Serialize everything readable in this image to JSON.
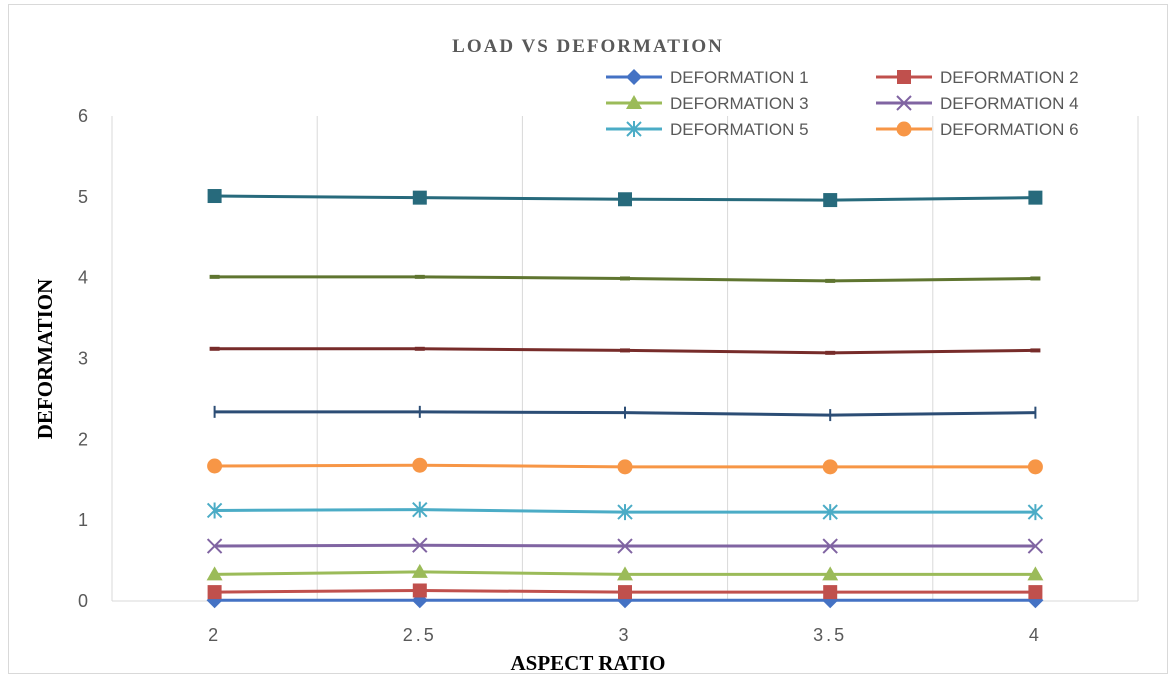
{
  "chart_data": {
    "type": "line",
    "title": "LOAD VS DEFORMATION",
    "xlabel": "ASPECT RATIO",
    "ylabel": "DEFORMATION",
    "x": [
      "2",
      "2.5",
      "3",
      "3.5",
      "4"
    ],
    "ylim": [
      0,
      6
    ],
    "yticks": [
      "0",
      "1",
      "2",
      "3",
      "4",
      "5",
      "6"
    ],
    "grid": "vertical",
    "legend_position": "top-right",
    "series": [
      {
        "name": "DEFORMATION 1",
        "values": [
          0.01,
          0.01,
          0.01,
          0.01,
          0.01
        ],
        "color": "#4472C4",
        "marker": "diamond"
      },
      {
        "name": "DEFORMATION 2",
        "values": [
          0.11,
          0.13,
          0.11,
          0.11,
          0.11
        ],
        "color": "#C0504D",
        "marker": "square"
      },
      {
        "name": "DEFORMATION 3",
        "values": [
          0.33,
          0.36,
          0.33,
          0.33,
          0.33
        ],
        "color": "#9BBB59",
        "marker": "triangle"
      },
      {
        "name": "DEFORMATION 4",
        "values": [
          0.68,
          0.69,
          0.68,
          0.68,
          0.68
        ],
        "color": "#8064A2",
        "marker": "x"
      },
      {
        "name": "DEFORMATION 5",
        "values": [
          1.12,
          1.13,
          1.1,
          1.1,
          1.1
        ],
        "color": "#4BACC6",
        "marker": "star"
      },
      {
        "name": "DEFORMATION 6",
        "values": [
          1.67,
          1.68,
          1.66,
          1.66,
          1.66
        ],
        "color": "#F79646",
        "marker": "circle"
      },
      {
        "name": "",
        "values": [
          2.34,
          2.34,
          2.33,
          2.3,
          2.33
        ],
        "color": "#2C4D75",
        "marker": "plus"
      },
      {
        "name": "",
        "values": [
          3.12,
          3.12,
          3.1,
          3.07,
          3.1
        ],
        "color": "#772C2A",
        "marker": "dash"
      },
      {
        "name": "",
        "values": [
          4.01,
          4.01,
          3.99,
          3.96,
          3.99
        ],
        "color": "#5F7530",
        "marker": "dash"
      },
      {
        "name": "",
        "values": [
          5.01,
          4.99,
          4.97,
          4.96,
          4.99
        ],
        "color": "#276A7C",
        "marker": "square"
      }
    ]
  }
}
